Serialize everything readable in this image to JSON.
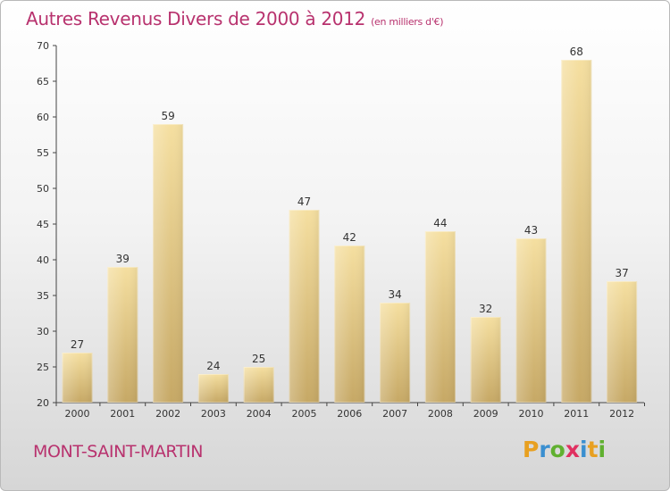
{
  "title": "Autres Revenus Divers de 2000 à 2012",
  "subtitle": "(en milliers d'€)",
  "location": "MONT-SAINT-MARTIN",
  "brand": {
    "letters": [
      "P",
      "r",
      "o",
      "x",
      "i",
      "t",
      "i"
    ],
    "colors": [
      "#e8a020",
      "#3a8fd0",
      "#60b030",
      "#e03060",
      "#3a8fd0",
      "#e8a020",
      "#60b030"
    ]
  },
  "colors": {
    "accent": "#b8326e",
    "bar_light": "#f5dfa0",
    "bar_dark": "#c6a865",
    "axis": "#444444"
  },
  "chart_data": {
    "type": "bar",
    "categories": [
      "2000",
      "2001",
      "2002",
      "2003",
      "2004",
      "2005",
      "2006",
      "2007",
      "2008",
      "2009",
      "2010",
      "2011",
      "2012"
    ],
    "values": [
      27,
      39,
      59,
      24,
      25,
      47,
      42,
      34,
      44,
      32,
      43,
      68,
      37
    ],
    "ylim": [
      20,
      70
    ],
    "yticks": [
      20,
      25,
      30,
      35,
      40,
      45,
      50,
      55,
      60,
      65,
      70
    ],
    "grid": false,
    "data_labels": true
  }
}
